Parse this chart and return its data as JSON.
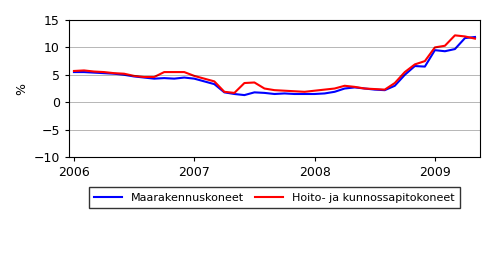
{
  "title": "",
  "ylabel": "%",
  "ylim": [
    -10,
    15
  ],
  "yticks": [
    -10,
    -5,
    0,
    5,
    10,
    15
  ],
  "background_color": "#ffffff",
  "line_blue_color": "#0000ff",
  "line_red_color": "#ff0000",
  "legend_blue": "Maarakennuskoneet",
  "legend_red": "Hoito- ja kunnossapitokoneet",
  "x_tick_positions": [
    0,
    12,
    24,
    36
  ],
  "x_tick_labels": [
    "2006",
    "2007",
    "2008",
    "2009"
  ],
  "xlim": [
    -0.5,
    40.5
  ],
  "maarakennuskoneet": [
    5.5,
    5.5,
    5.4,
    5.3,
    5.2,
    5.0,
    4.7,
    4.5,
    4.3,
    4.4,
    4.3,
    4.5,
    4.3,
    3.8,
    3.3,
    1.8,
    1.5,
    1.3,
    1.8,
    1.7,
    1.5,
    1.6,
    1.5,
    1.5,
    1.5,
    1.6,
    1.9,
    2.5,
    2.7,
    2.5,
    2.3,
    2.2,
    3.0,
    5.0,
    6.6,
    6.5,
    9.5,
    9.3,
    9.7,
    11.7,
    11.9
  ],
  "hoito_koneet": [
    5.7,
    5.8,
    5.6,
    5.5,
    5.3,
    5.2,
    4.8,
    4.6,
    4.6,
    5.5,
    5.5,
    5.5,
    4.8,
    4.3,
    3.8,
    1.9,
    1.7,
    3.5,
    3.6,
    2.5,
    2.2,
    2.1,
    2.0,
    1.9,
    2.1,
    2.3,
    2.5,
    3.0,
    2.8,
    2.5,
    2.4,
    2.3,
    3.5,
    5.5,
    6.9,
    7.5,
    10.0,
    10.3,
    12.2,
    12.0,
    11.6
  ],
  "line_width": 1.5,
  "grid_color": "#000000",
  "grid_alpha": 0.4,
  "legend_fontsize": 8,
  "ylabel_fontsize": 9,
  "tick_fontsize": 9
}
